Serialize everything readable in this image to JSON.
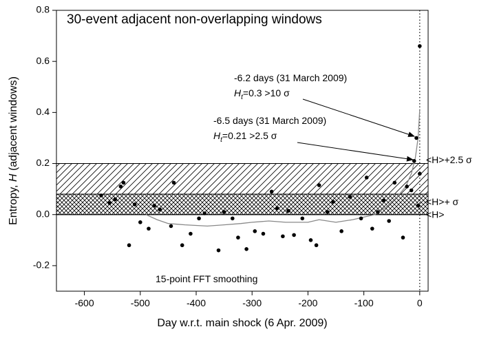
{
  "chart_data": {
    "type": "scatter",
    "title": "30-event adjacent non-overlapping windows",
    "x_label": "Day w.r.t. main shock (6 Apr. 2009)",
    "y_label": {
      "prefix": "Entropy, ",
      "symbol": "H",
      "suffix": " (adjacent windows)"
    },
    "smoothing_label": "15-point FFT smoothing",
    "xlim": [
      -650,
      15
    ],
    "ylim": [
      -0.3,
      0.8
    ],
    "xticks": [
      -600,
      -500,
      -400,
      -300,
      -200,
      -100,
      0
    ],
    "yticks": [
      -0.2,
      {
        "value": 0,
        "label": "0.0"
      },
      0.2,
      0.4,
      0.6,
      0.8
    ],
    "reference_x": 0,
    "bands": [
      {
        "value": 0.2,
        "label": "<H>+2.5 σ"
      },
      {
        "value": 0.08,
        "label": "<H>+ σ"
      },
      {
        "value": 0,
        "label": "<H>"
      }
    ],
    "series": [
      {
        "type": "scatter",
        "color": "#000000",
        "x": [
          -570,
          -555,
          -545,
          -535,
          -530,
          -520,
          -510,
          -500,
          -485,
          -475,
          -465,
          -445,
          -440,
          -425,
          -410,
          -395,
          -385,
          -360,
          -350,
          -335,
          -325,
          -310,
          -295,
          -280,
          -265,
          -255,
          -245,
          -235,
          -225,
          -210,
          -195,
          -185,
          -180,
          -165,
          -155,
          -140,
          -125,
          -105,
          -95,
          -85,
          -75,
          -65,
          -55,
          -45,
          -30,
          -23,
          -15,
          -10,
          -6,
          -3,
          0,
          0
        ],
        "values": [
          0.075,
          0.045,
          0.06,
          0.11,
          0.125,
          -0.12,
          0.04,
          -0.03,
          -0.055,
          0.035,
          0.02,
          -0.045,
          0.125,
          -0.12,
          -0.075,
          -0.015,
          0.005,
          -0.14,
          0.01,
          -0.015,
          -0.09,
          -0.135,
          -0.065,
          -0.075,
          0.09,
          0.025,
          -0.085,
          0.015,
          -0.08,
          -0.015,
          -0.1,
          -0.12,
          0.115,
          0.01,
          0.05,
          -0.065,
          0.07,
          -0.015,
          0.145,
          -0.055,
          0.01,
          0.055,
          -0.025,
          0.125,
          -0.09,
          0.11,
          0.095,
          0.21,
          0.3,
          0.035,
          0.16,
          0.66
        ]
      },
      {
        "type": "line",
        "color": "#888888",
        "x": [
          -490,
          -470,
          -450,
          -420,
          -380,
          -350,
          -320,
          -300,
          -270,
          -240,
          -200,
          -180,
          -150,
          -120,
          -100,
          -80,
          -60,
          -40,
          -25,
          -15,
          -8,
          -3,
          0
        ],
        "values": [
          0.0,
          -0.02,
          -0.035,
          -0.04,
          -0.045,
          -0.04,
          -0.035,
          -0.03,
          -0.025,
          -0.03,
          -0.03,
          -0.02,
          -0.03,
          -0.02,
          -0.01,
          0.0,
          0.03,
          0.07,
          0.11,
          0.16,
          0.22,
          0.3,
          0.41
        ]
      }
    ],
    "annotations": [
      {
        "line1": "-6.2 days (31 March 2009)",
        "symbol": "H",
        "subscript": "t",
        "line2": "=0.3 >10 σ"
      },
      {
        "line1": "-6.5 days (31 March 2009)",
        "symbol": "H",
        "subscript": "t",
        "line2": "=0.21 >2.5 σ"
      }
    ]
  }
}
